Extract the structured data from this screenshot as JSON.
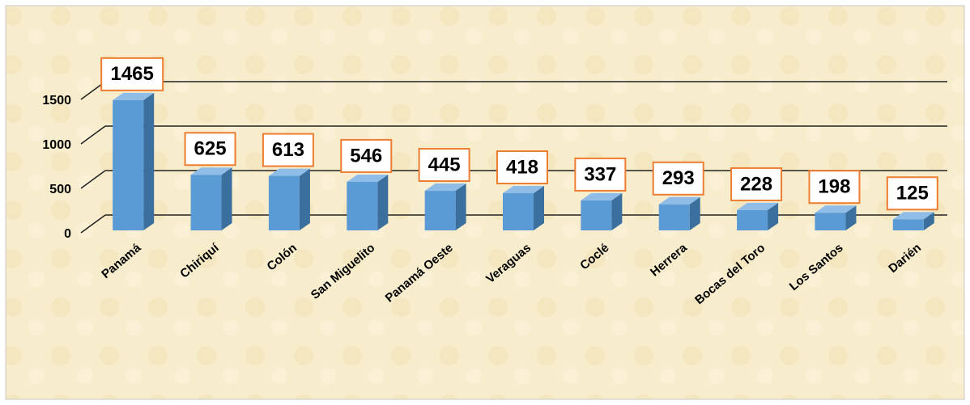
{
  "chart_data": {
    "type": "bar",
    "categories": [
      "Panamá",
      "Chiriquí",
      "Colón",
      "San Miguelito",
      "Panamá Oeste",
      "Veraguas",
      "Coclé",
      "Herrera",
      "Bocas del Toro",
      "Los Santos",
      "Darién"
    ],
    "values": [
      1465,
      625,
      613,
      546,
      445,
      418,
      337,
      293,
      228,
      198,
      125
    ],
    "color": "#5b9bd5",
    "ylim": [
      0,
      1500
    ],
    "yticks": [
      0,
      500,
      1000,
      1500
    ],
    "grid": true
  }
}
